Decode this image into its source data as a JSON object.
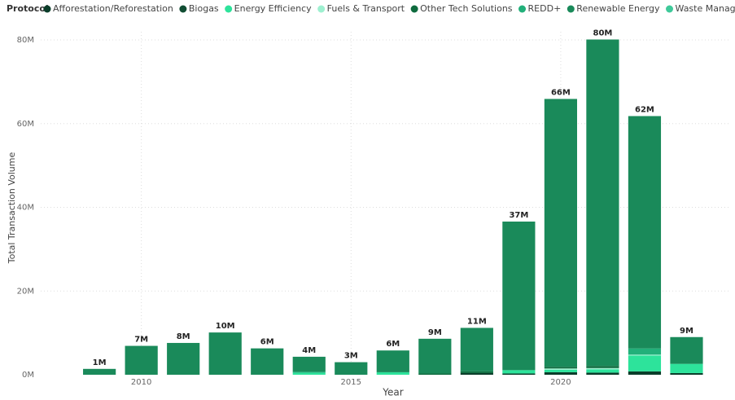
{
  "chart_data": {
    "type": "stacked_bar",
    "legend_title": "Protocol",
    "x_label": "Year",
    "y_label": "Total Transaction Volume",
    "x": [
      2009,
      2010,
      2011,
      2012,
      2013,
      2014,
      2015,
      2016,
      2017,
      2018,
      2019,
      2020,
      2021,
      2022,
      2023
    ],
    "xlim": [
      2007.6,
      2024
    ],
    "xticks": [
      2010,
      2015,
      2020
    ],
    "ylim": [
      0,
      80000000
    ],
    "yticks": [
      {
        "value": 0,
        "label": "0M"
      },
      {
        "value": 20000000,
        "label": "20M"
      },
      {
        "value": 40000000,
        "label": "40M"
      },
      {
        "value": 60000000,
        "label": "60M"
      },
      {
        "value": 80000000,
        "label": "80M"
      }
    ],
    "grid": true,
    "legend_position": "top",
    "total_labels": [
      "1M",
      "7M",
      "8M",
      "10M",
      "6M",
      "4M",
      "3M",
      "6M",
      "9M",
      "11M",
      "37M",
      "66M",
      "80M",
      "62M",
      "9M"
    ],
    "series": [
      {
        "name": "Afforestation/Reforestation",
        "color": "#0b3d2a",
        "values": [
          0,
          0,
          0,
          0,
          0,
          0,
          0,
          0,
          0,
          400000,
          300000,
          600000,
          500000,
          800000,
          400000
        ]
      },
      {
        "name": "Biogas",
        "color": "#114d33",
        "values": [
          0,
          0,
          0,
          0,
          0,
          0,
          0,
          0,
          0,
          0,
          0,
          0,
          0,
          0,
          0
        ]
      },
      {
        "name": "Energy Efficiency",
        "color": "#2de39b",
        "values": [
          0,
          0,
          0,
          0,
          0,
          500000,
          0,
          600000,
          0,
          0,
          800000,
          600000,
          800000,
          3800000,
          2200000
        ]
      },
      {
        "name": "Fuels & Transport",
        "color": "#9ef0d0",
        "values": [
          0,
          0,
          0,
          0,
          0,
          0,
          0,
          0,
          0,
          0,
          0,
          300000,
          300000,
          200000,
          0
        ]
      },
      {
        "name": "Other Tech Solutions",
        "color": "#0e6b3e",
        "values": [
          0,
          0,
          0,
          0,
          0,
          0,
          0,
          0,
          300000,
          400000,
          0,
          400000,
          500000,
          0,
          0
        ]
      },
      {
        "name": "REDD+",
        "color": "#22b07a",
        "values": [
          0,
          0,
          0,
          0,
          0,
          200000,
          0,
          0,
          0,
          0,
          0,
          0,
          0,
          1500000,
          0
        ]
      },
      {
        "name": "Renewable Energy",
        "color": "#1a8a5a",
        "values": [
          1400000,
          6900000,
          7600000,
          10100000,
          6300000,
          3600000,
          3000000,
          5200000,
          8300000,
          10400000,
          35500000,
          64000000,
          78000000,
          55500000,
          6400000
        ]
      },
      {
        "name": "Waste Management",
        "color": "#3fc99a",
        "values": [
          0,
          0,
          0,
          0,
          0,
          0,
          0,
          0,
          0,
          0,
          0,
          0,
          0,
          0,
          0
        ]
      }
    ]
  }
}
